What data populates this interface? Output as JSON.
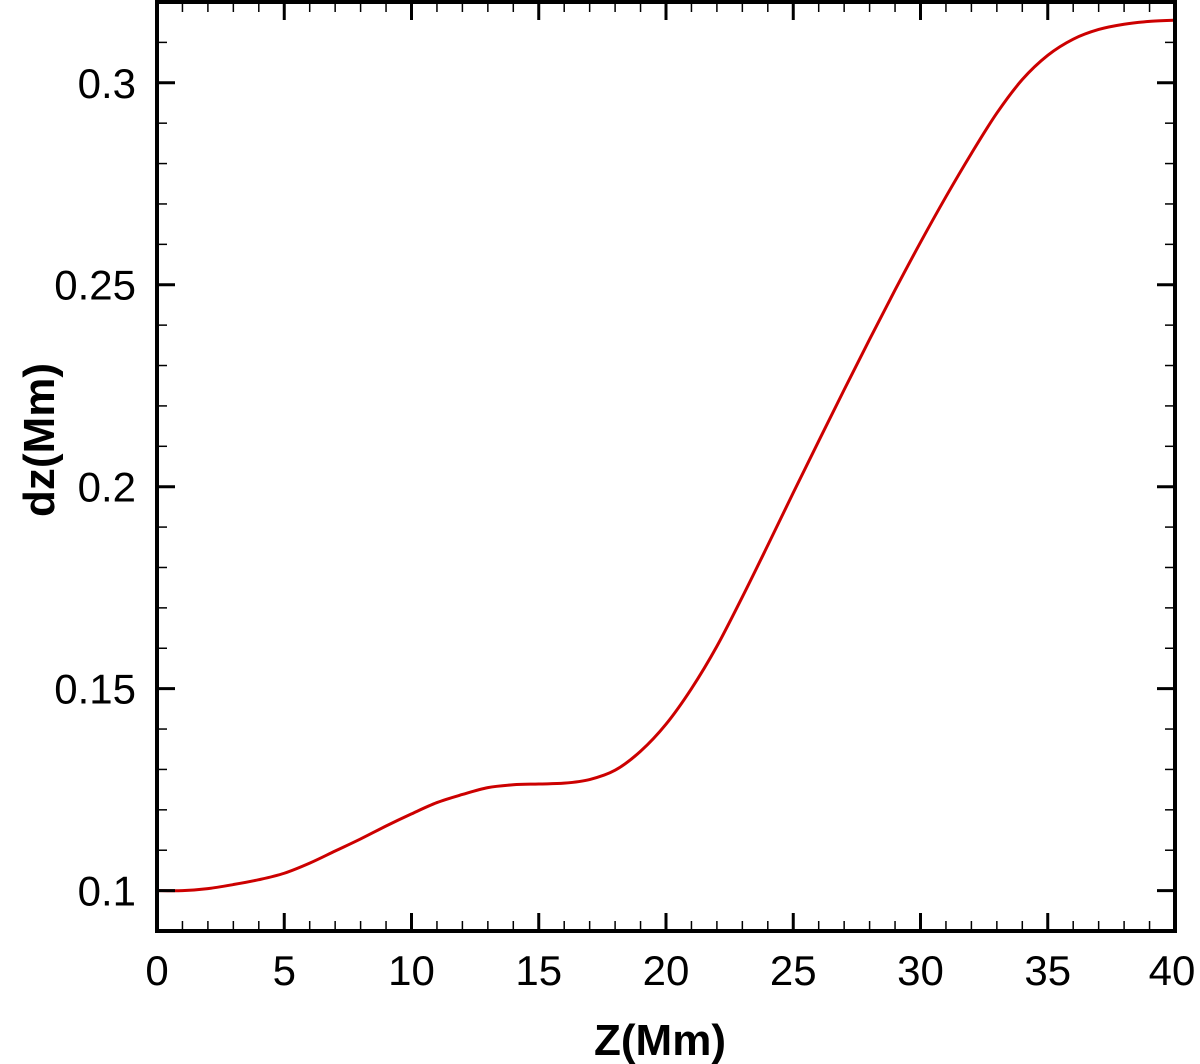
{
  "chart_data": {
    "type": "line",
    "title": "",
    "xlabel": "Z(Mm)",
    "ylabel": "dz(Mm)",
    "xlim": [
      0,
      40
    ],
    "ylim": [
      0.09,
      0.32
    ],
    "x_ticks": [
      0,
      5,
      10,
      15,
      20,
      25,
      30,
      35,
      40
    ],
    "x_tick_labels": [
      "0",
      "5",
      "10",
      "15",
      "20",
      "25",
      "30",
      "35",
      "40"
    ],
    "y_ticks": [
      0.1,
      0.15,
      0.2,
      0.25,
      0.3
    ],
    "y_tick_labels": [
      "0.1",
      "0.15",
      "0.2",
      "0.25",
      "0.3"
    ],
    "x_minor_step": 1,
    "y_minor_step": 0.01,
    "grid": false,
    "legend": "none",
    "series": [
      {
        "color": "#cc0000",
        "x": [
          0,
          1,
          2,
          3,
          4,
          5,
          6,
          7,
          8,
          9,
          10,
          11,
          12,
          13,
          14,
          15,
          16,
          17,
          18,
          19,
          20,
          21,
          22,
          23,
          24,
          25,
          26,
          27,
          28,
          29,
          30,
          31,
          32,
          33,
          34,
          35,
          36,
          37,
          38,
          39,
          40
        ],
        "y": [
          0.1,
          0.1,
          0.1005,
          0.1015,
          0.1027,
          0.1043,
          0.1068,
          0.1098,
          0.1128,
          0.116,
          0.119,
          0.1218,
          0.1238,
          0.1255,
          0.1262,
          0.1264,
          0.1266,
          0.1275,
          0.1298,
          0.1345,
          0.1412,
          0.15,
          0.1605,
          0.1727,
          0.1855,
          0.1985,
          0.2113,
          0.224,
          0.2365,
          0.2487,
          0.2605,
          0.2718,
          0.2825,
          0.2925,
          0.3008,
          0.3068,
          0.3108,
          0.3132,
          0.3145,
          0.3152,
          0.3155
        ]
      }
    ]
  },
  "colors": {
    "line": "#cc0000",
    "axes": "#000000",
    "background": "#ffffff"
  }
}
